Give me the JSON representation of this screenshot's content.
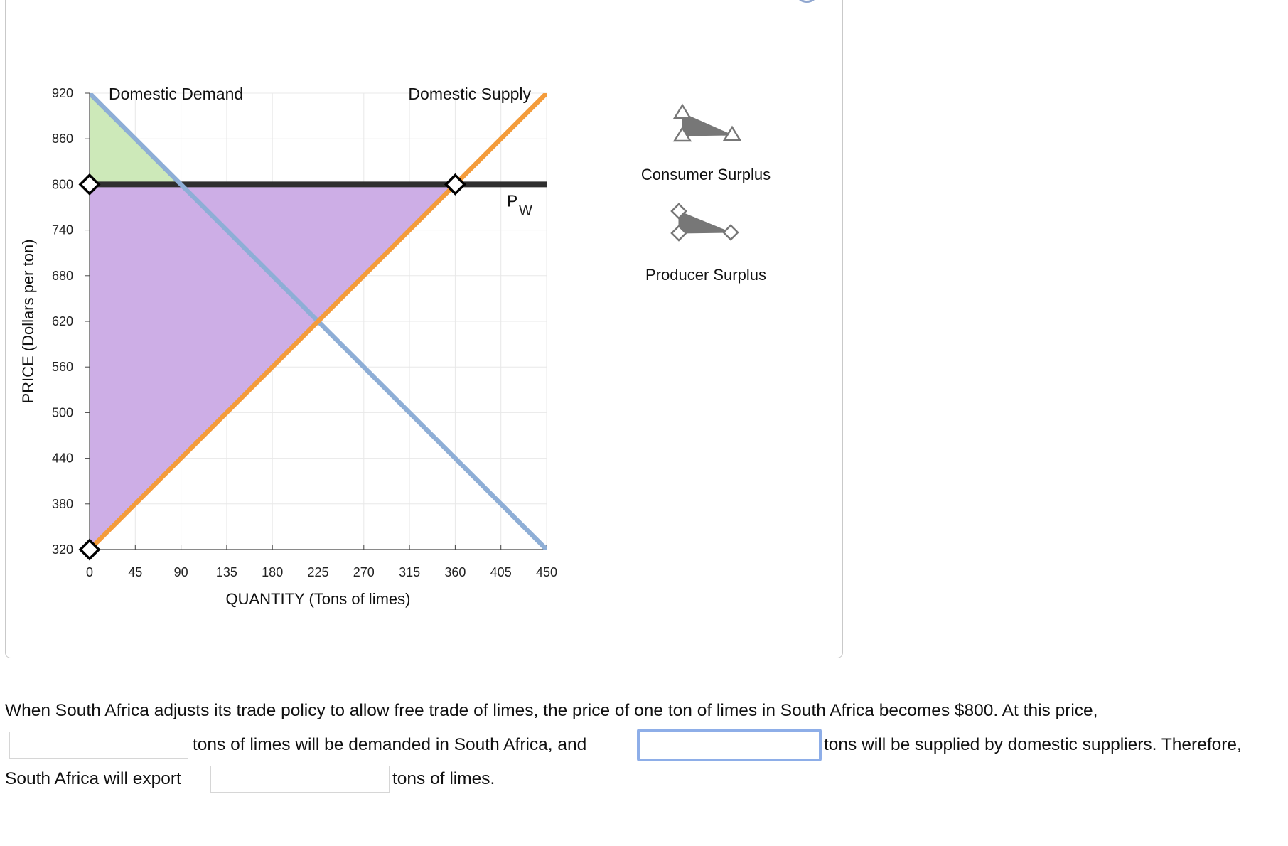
{
  "chart_data": {
    "type": "line",
    "xlabel": "QUANTITY (Tons of limes)",
    "ylabel": "PRICE (Dollars per ton)",
    "xlim": [
      0,
      450
    ],
    "ylim": [
      320,
      920
    ],
    "x_ticks": [
      0,
      45,
      90,
      135,
      180,
      225,
      270,
      315,
      360,
      405,
      450
    ],
    "y_ticks": [
      320,
      380,
      440,
      500,
      560,
      620,
      680,
      740,
      800,
      860,
      920
    ],
    "grid": true,
    "series": [
      {
        "name": "Domestic Demand",
        "x": [
          0,
          450
        ],
        "y": [
          920,
          320
        ],
        "color": "#8eaed6"
      },
      {
        "name": "Domestic Supply",
        "x": [
          0,
          450
        ],
        "y": [
          320,
          920
        ],
        "color": "#f49c3b"
      }
    ],
    "world_price": {
      "label": "P",
      "subscript": "W",
      "value": 800,
      "color": "#2f2f2f"
    },
    "shaded_areas": [
      {
        "name": "Consumer Surplus",
        "color": "#cde9b9",
        "points": [
          [
            0,
            920
          ],
          [
            0,
            800
          ],
          [
            90,
            800
          ]
        ]
      },
      {
        "name": "Producer Surplus",
        "color": "#cdaee6",
        "points": [
          [
            0,
            800
          ],
          [
            360,
            800
          ],
          [
            0,
            320
          ]
        ]
      }
    ],
    "handles": [
      [
        0,
        800
      ],
      [
        360,
        800
      ],
      [
        0,
        320
      ]
    ],
    "legend": [
      {
        "label": "Consumer Surplus",
        "marker": "triangle"
      },
      {
        "label": "Producer Surplus",
        "marker": "diamond"
      }
    ]
  },
  "question": {
    "line1": "When South Africa adjusts its trade policy to allow free trade of limes, the price of one ton of limes in South Africa becomes $800. At this price,",
    "line2_text1": "tons of limes will be demanded in South Africa, and",
    "line2_text2": "tons will be supplied by domestic suppliers. Therefore,",
    "line3_text1": "South Africa will export",
    "line3_text2": "tons of limes.",
    "answer_demanded": "",
    "answer_supplied": "",
    "answer_export": ""
  }
}
